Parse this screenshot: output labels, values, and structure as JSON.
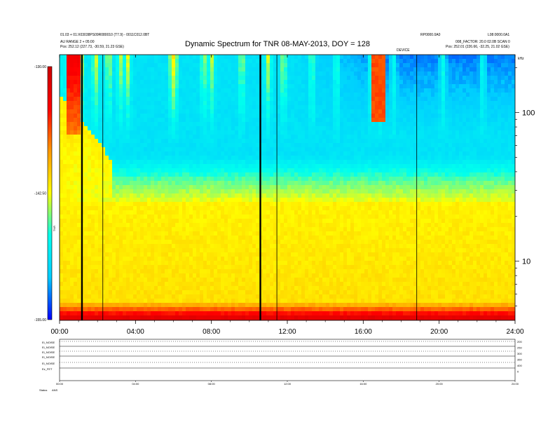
{
  "header": {
    "top_left_line1": "01.03 + 01:X03038PS09R080010 (T7.9) - 0011C012.0BT",
    "top_left_line2": "AU RANGE 2 + 05:00",
    "top_left_line3": "Pos:   252.12 (227.73, -30.59, 21.23 GSE)",
    "top_right_left": "RP0000.0A0",
    "top_right_right": "L08:0000.0A1",
    "top_right_line2": "008_FACTOR: 20.0 02.0B SCAN 0",
    "top_right_line3": "Pos:   252.01 (226.66, -32.25, 21.02 GSE)",
    "mid_tag": "DEVICE",
    "corner_tag": "kHz"
  },
  "chart_data": [
    {
      "type": "heatmap",
      "title": "Dynamic Spectrum for TNR 08-MAY-2013, DOY = 128",
      "xlabel": "",
      "ylabel": "",
      "x_ticks": [
        "00:00",
        "04:00",
        "08:00",
        "12:00",
        "16:00",
        "20:00",
        "24:00"
      ],
      "x_range_hours": [
        0,
        24
      ],
      "y_scale": "log",
      "y_range_khz": [
        4,
        245
      ],
      "y_ticks": [
        10,
        100
      ],
      "colorbar": {
        "label": "TNR",
        "ticks": [
          "-130.00",
          "-142.50",
          "-155.00"
        ],
        "range": [
          -155,
          -130
        ],
        "colors": [
          "#0000ff",
          "#00ccff",
          "#00ffee",
          "#ffff00",
          "#ff9900",
          "#ff0000",
          "#cc0000"
        ]
      },
      "vertical_markers_hours": [
        1.18,
        2.28,
        10.58,
        11.45,
        18.82
      ],
      "heavy_markers_hours": [
        1.18,
        10.58
      ]
    },
    {
      "type": "line",
      "panel": "housekeeping",
      "row_labels": [
        "Ei_NOISE",
        "Ei_NOISE",
        "Ei_NOISE",
        "Ei_NOISE",
        "Ei_NOISE",
        "Ez_FET",
        "Status"
      ],
      "right_values": [
        "200",
        "250",
        "300",
        "350",
        "400",
        "0"
      ],
      "x_ticks": [
        "00:00",
        "04:00",
        "08:00",
        "12:00",
        "16:00",
        "20:00",
        "24:00"
      ],
      "bottom_tag": "ANS"
    }
  ]
}
